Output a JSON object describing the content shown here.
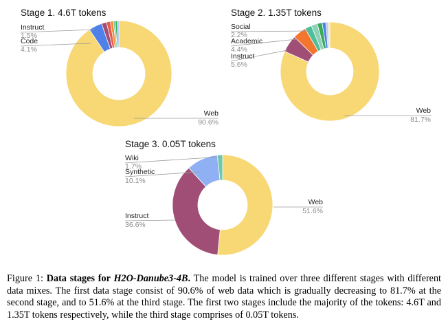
{
  "chart_data": [
    {
      "type": "pie",
      "title": "Stage 1. 4.6T tokens",
      "slices": [
        {
          "name": "Web",
          "value": 90.6,
          "display": "90.6%",
          "color": "#F8D775",
          "label": true
        },
        {
          "name": "Code",
          "value": 4.1,
          "display": "4.1%",
          "color": "#4F81E8",
          "label": true
        },
        {
          "name": "Instruct",
          "value": 1.5,
          "display": "1.5%",
          "color": "#A04E76",
          "label": true
        },
        {
          "name": "",
          "value": 1.2,
          "display": "",
          "color": "#E8594A",
          "label": false
        },
        {
          "name": "",
          "value": 0.9,
          "display": "",
          "color": "#F28A30",
          "label": false
        },
        {
          "name": "",
          "value": 0.6,
          "display": "",
          "color": "#6DC9A7",
          "label": false
        },
        {
          "name": "",
          "value": 0.6,
          "display": "",
          "color": "#3BAA5A",
          "label": false
        },
        {
          "name": "",
          "value": 0.5,
          "display": "",
          "color": "#8FB0F2",
          "label": false
        }
      ]
    },
    {
      "type": "pie",
      "title": "Stage 2. 1.35T tokens",
      "slices": [
        {
          "name": "Web",
          "value": 81.7,
          "display": "81.7%",
          "color": "#F8D775",
          "label": true
        },
        {
          "name": "Instruct",
          "value": 5.6,
          "display": "5.6%",
          "color": "#A04E76",
          "label": true
        },
        {
          "name": "Academic",
          "value": 4.4,
          "display": "4.4%",
          "color": "#F2762E",
          "label": true
        },
        {
          "name": "Social",
          "value": 2.2,
          "display": "2.2%",
          "color": "#4FBF9B",
          "label": true
        },
        {
          "name": "",
          "value": 2.0,
          "display": "",
          "color": "#8FD0B8",
          "label": false
        },
        {
          "name": "",
          "value": 1.6,
          "display": "",
          "color": "#3BAA5A",
          "label": false
        },
        {
          "name": "",
          "value": 1.2,
          "display": "",
          "color": "#4F81E8",
          "label": false
        },
        {
          "name": "",
          "value": 0.8,
          "display": "",
          "color": "#B8CDEF",
          "label": false
        },
        {
          "name": "",
          "value": 0.5,
          "display": "",
          "color": "#F3E3A6",
          "label": false
        }
      ]
    },
    {
      "type": "pie",
      "title": "Stage 3. 0.05T tokens",
      "slices": [
        {
          "name": "Web",
          "value": 51.6,
          "display": "51.6%",
          "color": "#F8D775",
          "label": true
        },
        {
          "name": "Instruct",
          "value": 36.6,
          "display": "36.6%",
          "color": "#A04E76",
          "label": true
        },
        {
          "name": "Synthetic",
          "value": 10.1,
          "display": "10.1%",
          "color": "#8FB0F2",
          "label": true
        },
        {
          "name": "Wiki",
          "value": 1.7,
          "display": "1.7%",
          "color": "#6DC9A7",
          "label": true
        }
      ]
    }
  ],
  "caption": {
    "prefix": "Figure 1: ",
    "bold": "Data stages for ",
    "bold_italic": "H2O-Danube3-4B",
    "bold_end": ".",
    "rest": " The model is trained over three different stages with different data mixes. The first data stage consist of 90.6% of web data which is gradually decreasing to 81.7% at the second stage, and to 51.6% at the third stage. The first two stages include the majority of the tokens: 4.6T and 1.35T tokens respectively, while the third stage comprises of 0.05T tokens."
  }
}
